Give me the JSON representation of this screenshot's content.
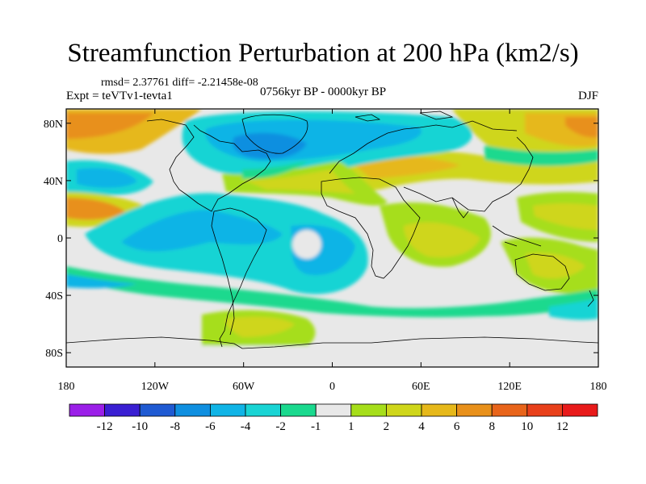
{
  "title": "Streamfunction Perturbation at 200 hPa (km2/s)",
  "stats": "rmsd= 2.37761 diff= -2.21458e-08",
  "experiment": "Expt = teVTv1-tevta1",
  "period": "0756kyr BP - 0000kyr BP",
  "season": "DJF",
  "lat_ticks": [
    "80N",
    "40N",
    "0",
    "40S",
    "80S"
  ],
  "lon_ticks": [
    "180",
    "120W",
    "60W",
    "0",
    "60E",
    "120E",
    "180"
  ],
  "colorbar": {
    "levels": [
      "-12",
      "-10",
      "-8",
      "-6",
      "-4",
      "-2",
      "-1",
      "1",
      "2",
      "4",
      "6",
      "8",
      "10",
      "12"
    ],
    "colors": [
      "#9b1fe8",
      "#3a1fd2",
      "#1f5ad2",
      "#0f8fe0",
      "#10b4e6",
      "#19d4d4",
      "#1ad98e",
      "#e8e8e8",
      "#a6de1a",
      "#cfd61a",
      "#e6b81a",
      "#e8901a",
      "#e8641a",
      "#e8401a",
      "#e81a1a"
    ]
  },
  "map": {
    "lat_range": [
      -90,
      90
    ],
    "lon_range": [
      -180,
      180
    ],
    "background_color": "#e8e8e8"
  }
}
